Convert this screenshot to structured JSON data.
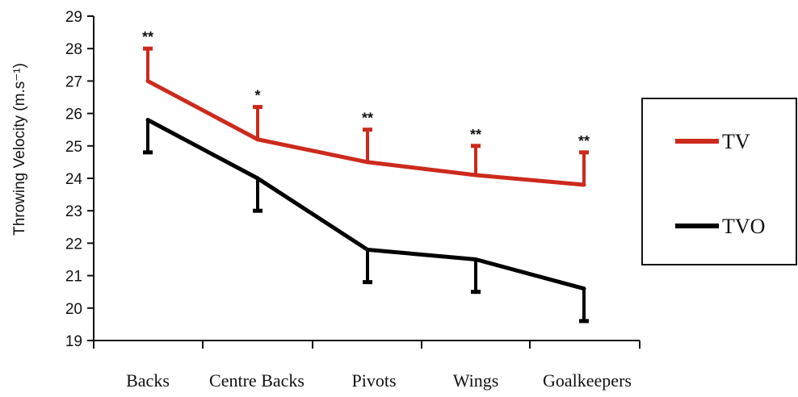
{
  "chart_data": {
    "type": "line",
    "ylabel": "Throwing Velocity (m.s⁻¹)",
    "xlabel": "",
    "ylim": [
      19,
      29
    ],
    "yticks": [
      19,
      20,
      21,
      22,
      23,
      24,
      25,
      26,
      27,
      28,
      29
    ],
    "categories": [
      "Backs",
      "Centre Backs",
      "Pivots",
      "Wings",
      "Goalkeepers"
    ],
    "grid": false,
    "legend_position": "right",
    "series": [
      {
        "name": "TV",
        "color": "#cc2a1c",
        "values": [
          27.0,
          25.2,
          24.5,
          24.1,
          23.8
        ],
        "error": [
          1.0,
          1.0,
          1.0,
          0.9,
          1.0
        ],
        "error_direction": "up",
        "annotations": [
          "**",
          "*",
          "**",
          "**",
          "**"
        ]
      },
      {
        "name": "TVO",
        "color": "#000000",
        "values": [
          25.8,
          24.0,
          21.8,
          21.5,
          20.6
        ],
        "error": [
          1.0,
          1.0,
          1.0,
          1.0,
          1.0
        ],
        "error_direction": "down"
      }
    ]
  }
}
